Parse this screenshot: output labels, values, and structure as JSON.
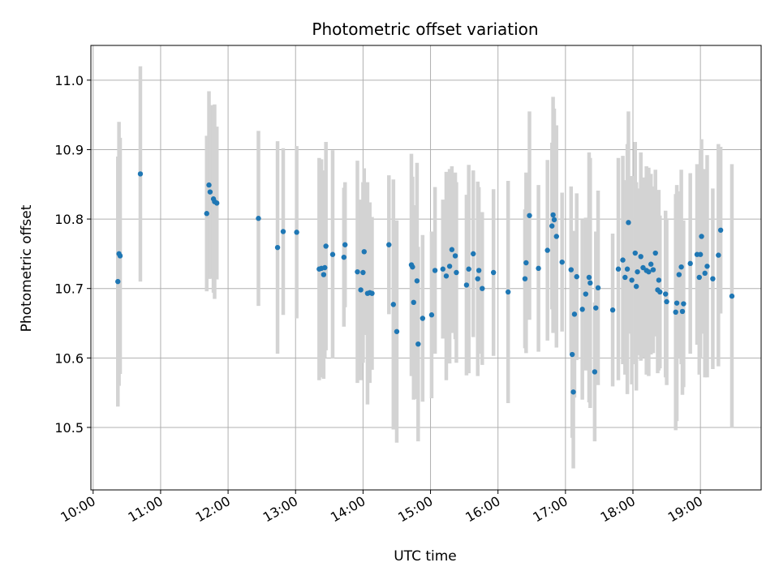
{
  "chart_data": {
    "type": "scatter",
    "title": "Photometric offset variation",
    "xlabel": "UTC time",
    "ylabel": "Photometric offset",
    "grid": true,
    "x_ticks": [
      "10:00",
      "11:00",
      "12:00",
      "13:00",
      "14:00",
      "15:00",
      "16:00",
      "17:00",
      "18:00",
      "19:00"
    ],
    "y_ticks": [
      10.5,
      10.6,
      10.7,
      10.8,
      10.9,
      11.0
    ],
    "xlim": [
      "09:58",
      "19:54"
    ],
    "ylim": [
      10.41,
      11.05
    ],
    "colors": {
      "point": "#1f77b4",
      "errorbar": "#d3d3d3",
      "grid": "#b0b0b0"
    },
    "series": [
      {
        "points": [
          {
            "x": "10:22",
            "y": 10.71,
            "err": 0.18
          },
          {
            "x": "10:23",
            "y": 10.75,
            "err": 0.19
          },
          {
            "x": "10:24",
            "y": 10.747,
            "err": 0.17
          },
          {
            "x": "10:42",
            "y": 10.865,
            "err": 0.155
          },
          {
            "x": "11:41",
            "y": 10.808,
            "err": 0.112
          },
          {
            "x": "11:43",
            "y": 10.849,
            "err": 0.135
          },
          {
            "x": "11:44",
            "y": 10.839,
            "err": 0.125
          },
          {
            "x": "11:47",
            "y": 10.829,
            "err": 0.135
          },
          {
            "x": "11:48",
            "y": 10.825,
            "err": 0.14
          },
          {
            "x": "11:50",
            "y": 10.823,
            "err": 0.11
          },
          {
            "x": "12:27",
            "y": 10.801,
            "err": 0.126
          },
          {
            "x": "12:44",
            "y": 10.759,
            "err": 0.153
          },
          {
            "x": "12:49",
            "y": 10.782,
            "err": 0.12
          },
          {
            "x": "13:01",
            "y": 10.781,
            "err": 0.124
          },
          {
            "x": "13:21",
            "y": 10.728,
            "err": 0.16
          },
          {
            "x": "13:23",
            "y": 10.729,
            "err": 0.157
          },
          {
            "x": "13:25",
            "y": 10.72,
            "err": 0.15
          },
          {
            "x": "13:26",
            "y": 10.73,
            "err": 0.13
          },
          {
            "x": "13:27",
            "y": 10.761,
            "err": 0.15
          },
          {
            "x": "13:33",
            "y": 10.749,
            "err": 0.15
          },
          {
            "x": "13:43",
            "y": 10.745,
            "err": 0.1
          },
          {
            "x": "13:44",
            "y": 10.763,
            "err": 0.09
          },
          {
            "x": "13:55",
            "y": 10.724,
            "err": 0.16
          },
          {
            "x": "13:58",
            "y": 10.698,
            "err": 0.13
          },
          {
            "x": "14:00",
            "y": 10.723,
            "err": 0.13
          },
          {
            "x": "14:01",
            "y": 10.753,
            "err": 0.12
          },
          {
            "x": "14:04",
            "y": 10.693,
            "err": 0.16
          },
          {
            "x": "14:06",
            "y": 10.694,
            "err": 0.13
          },
          {
            "x": "14:08",
            "y": 10.693,
            "err": 0.11
          },
          {
            "x": "14:23",
            "y": 10.763,
            "err": 0.1
          },
          {
            "x": "14:27",
            "y": 10.677,
            "err": 0.18
          },
          {
            "x": "14:30",
            "y": 10.638,
            "err": 0.16
          },
          {
            "x": "14:43",
            "y": 10.734,
            "err": 0.16
          },
          {
            "x": "14:44",
            "y": 10.731,
            "err": 0.13
          },
          {
            "x": "14:45",
            "y": 10.68,
            "err": 0.14
          },
          {
            "x": "14:48",
            "y": 10.711,
            "err": 0.17
          },
          {
            "x": "14:49",
            "y": 10.62,
            "err": 0.14
          },
          {
            "x": "14:53",
            "y": 10.657,
            "err": 0.12
          },
          {
            "x": "15:01",
            "y": 10.662,
            "err": 0.12
          },
          {
            "x": "15:04",
            "y": 10.726,
            "err": 0.12
          },
          {
            "x": "15:11",
            "y": 10.728,
            "err": 0.1
          },
          {
            "x": "15:14",
            "y": 10.718,
            "err": 0.15
          },
          {
            "x": "15:17",
            "y": 10.732,
            "err": 0.14
          },
          {
            "x": "15:19",
            "y": 10.756,
            "err": 0.12
          },
          {
            "x": "15:22",
            "y": 10.747,
            "err": 0.12
          },
          {
            "x": "15:23",
            "y": 10.723,
            "err": 0.13
          },
          {
            "x": "15:32",
            "y": 10.705,
            "err": 0.13
          },
          {
            "x": "15:34",
            "y": 10.728,
            "err": 0.15
          },
          {
            "x": "15:38",
            "y": 10.75,
            "err": 0.12
          },
          {
            "x": "15:42",
            "y": 10.714,
            "err": 0.14
          },
          {
            "x": "15:43",
            "y": 10.726,
            "err": 0.12
          },
          {
            "x": "15:46",
            "y": 10.7,
            "err": 0.11
          },
          {
            "x": "15:56",
            "y": 10.723,
            "err": 0.12
          },
          {
            "x": "16:09",
            "y": 10.695,
            "err": 0.16
          },
          {
            "x": "16:24",
            "y": 10.714,
            "err": 0.1
          },
          {
            "x": "16:25",
            "y": 10.737,
            "err": 0.13
          },
          {
            "x": "16:28",
            "y": 10.805,
            "err": 0.15
          },
          {
            "x": "16:36",
            "y": 10.729,
            "err": 0.12
          },
          {
            "x": "16:44",
            "y": 10.755,
            "err": 0.13
          },
          {
            "x": "16:48",
            "y": 10.79,
            "err": 0.12
          },
          {
            "x": "16:49",
            "y": 10.806,
            "err": 0.17
          },
          {
            "x": "16:50",
            "y": 10.799,
            "err": 0.16
          },
          {
            "x": "16:52",
            "y": 10.775,
            "err": 0.16
          },
          {
            "x": "16:57",
            "y": 10.738,
            "err": 0.1
          },
          {
            "x": "17:05",
            "y": 10.727,
            "err": 0.12
          },
          {
            "x": "17:06",
            "y": 10.605,
            "err": 0.12
          },
          {
            "x": "17:07",
            "y": 10.551,
            "err": 0.11
          },
          {
            "x": "17:08",
            "y": 10.663,
            "err": 0.12
          },
          {
            "x": "17:10",
            "y": 10.717,
            "err": 0.12
          },
          {
            "x": "17:15",
            "y": 10.67,
            "err": 0.13
          },
          {
            "x": "17:18",
            "y": 10.692,
            "err": 0.11
          },
          {
            "x": "17:21",
            "y": 10.716,
            "err": 0.18
          },
          {
            "x": "17:22",
            "y": 10.708,
            "err": 0.18
          },
          {
            "x": "17:26",
            "y": 10.58,
            "err": 0.1
          },
          {
            "x": "17:27",
            "y": 10.672,
            "err": 0.11
          },
          {
            "x": "17:29",
            "y": 10.701,
            "err": 0.14
          },
          {
            "x": "17:42",
            "y": 10.669,
            "err": 0.11
          },
          {
            "x": "17:47",
            "y": 10.728,
            "err": 0.16
          },
          {
            "x": "17:51",
            "y": 10.741,
            "err": 0.15
          },
          {
            "x": "17:53",
            "y": 10.716,
            "err": 0.14
          },
          {
            "x": "17:55",
            "y": 10.728,
            "err": 0.18
          },
          {
            "x": "17:56",
            "y": 10.795,
            "err": 0.16
          },
          {
            "x": "17:59",
            "y": 10.712,
            "err": 0.15
          },
          {
            "x": "18:02",
            "y": 10.751,
            "err": 0.16
          },
          {
            "x": "18:03",
            "y": 10.703,
            "err": 0.15
          },
          {
            "x": "18:04",
            "y": 10.724,
            "err": 0.12
          },
          {
            "x": "18:07",
            "y": 10.746,
            "err": 0.15
          },
          {
            "x": "18:09",
            "y": 10.73,
            "err": 0.13
          },
          {
            "x": "18:12",
            "y": 10.726,
            "err": 0.15
          },
          {
            "x": "18:14",
            "y": 10.724,
            "err": 0.15
          },
          {
            "x": "18:16",
            "y": 10.735,
            "err": 0.13
          },
          {
            "x": "18:18",
            "y": 10.727,
            "err": 0.12
          },
          {
            "x": "18:20",
            "y": 10.751,
            "err": 0.12
          },
          {
            "x": "18:22",
            "y": 10.698,
            "err": 0.12
          },
          {
            "x": "18:23",
            "y": 10.712,
            "err": 0.13
          },
          {
            "x": "18:24",
            "y": 10.695,
            "err": 0.11
          },
          {
            "x": "18:29",
            "y": 10.692,
            "err": 0.12
          },
          {
            "x": "18:30",
            "y": 10.681,
            "err": 0.12
          },
          {
            "x": "18:38",
            "y": 10.666,
            "err": 0.17
          },
          {
            "x": "18:39",
            "y": 10.679,
            "err": 0.17
          },
          {
            "x": "18:41",
            "y": 10.72,
            "err": 0.12
          },
          {
            "x": "18:43",
            "y": 10.731,
            "err": 0.14
          },
          {
            "x": "18:44",
            "y": 10.667,
            "err": 0.12
          },
          {
            "x": "18:45",
            "y": 10.678,
            "err": 0.12
          },
          {
            "x": "18:51",
            "y": 10.736,
            "err": 0.13
          },
          {
            "x": "18:57",
            "y": 10.749,
            "err": 0.13
          },
          {
            "x": "18:59",
            "y": 10.716,
            "err": 0.14
          },
          {
            "x": "19:00",
            "y": 10.749,
            "err": 0.15
          },
          {
            "x": "19:01",
            "y": 10.775,
            "err": 0.14
          },
          {
            "x": "19:04",
            "y": 10.722,
            "err": 0.15
          },
          {
            "x": "19:06",
            "y": 10.732,
            "err": 0.16
          },
          {
            "x": "19:11",
            "y": 10.714,
            "err": 0.13
          },
          {
            "x": "19:16",
            "y": 10.748,
            "err": 0.16
          },
          {
            "x": "19:18",
            "y": 10.784,
            "err": 0.12
          },
          {
            "x": "19:28",
            "y": 10.689,
            "err": 0.19
          }
        ]
      }
    ]
  }
}
